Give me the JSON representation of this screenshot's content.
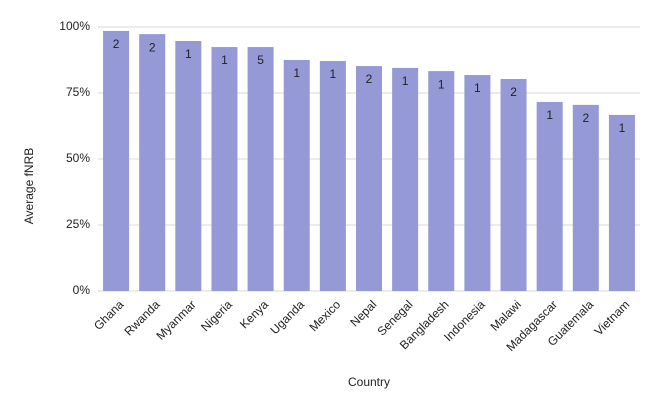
{
  "chart_data": {
    "type": "bar",
    "x_label": "Country",
    "y_label": "Average fNRB",
    "categories": [
      "Ghana",
      "Rwanda",
      "Myanmar",
      "Nigeria",
      "Kenya",
      "Uganda",
      "Mexico",
      "Nepal",
      "Senegal",
      "Bangladesh",
      "Indonesia",
      "Malawi",
      "Madagascar",
      "Guatemala",
      "Vietnam"
    ],
    "values": [
      98.5,
      97.3,
      94.7,
      92.4,
      92.4,
      87.5,
      87.1,
      85.2,
      84.5,
      83.3,
      81.8,
      80.3,
      71.6,
      70.5,
      66.7
    ],
    "bar_labels": [
      2,
      2,
      1,
      1,
      5,
      1,
      1,
      2,
      1,
      1,
      1,
      2,
      1,
      2,
      1
    ],
    "color": "#9599d6",
    "ylim": [
      0,
      100
    ],
    "yticks": [
      {
        "value": 0,
        "label": "0%"
      },
      {
        "value": 25,
        "label": "25%"
      },
      {
        "value": 50,
        "label": "50%"
      },
      {
        "value": 75,
        "label": "75%"
      },
      {
        "value": 100,
        "label": "100%"
      }
    ],
    "grid": true
  }
}
